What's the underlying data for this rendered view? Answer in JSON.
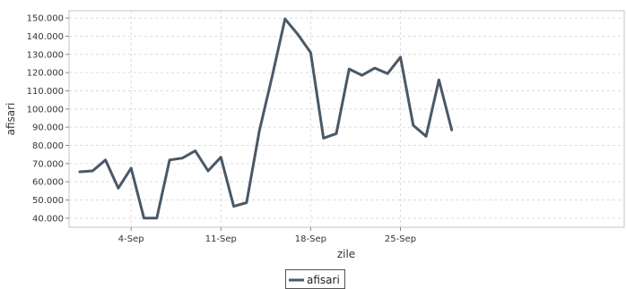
{
  "chart_data": {
    "type": "line",
    "title": "",
    "xlabel": "zile",
    "ylabel": "afisari",
    "grid": true,
    "legend_position": "bottom-center",
    "ylim": [
      35000,
      154000
    ],
    "y_ticks": [
      40000,
      50000,
      60000,
      70000,
      80000,
      90000,
      100000,
      110000,
      120000,
      130000,
      140000,
      150000
    ],
    "y_tick_labels": [
      "40.000",
      "50.000",
      "60.000",
      "70.000",
      "80.000",
      "90.000",
      "100.000",
      "110.000",
      "120.000",
      "130.000",
      "140.000",
      "150.000"
    ],
    "x_dates": [
      "Aug 31",
      "Sep 1",
      "Sep 2",
      "Sep 3",
      "Sep 4",
      "Sep 5",
      "Sep 6",
      "Sep 7",
      "Sep 8",
      "Sep 9",
      "Sep 10",
      "Sep 11",
      "Sep 12",
      "Sep 13",
      "Sep 14",
      "Sep 15",
      "Sep 16",
      "Sep 17",
      "Sep 18",
      "Sep 19",
      "Sep 20",
      "Sep 21",
      "Sep 22",
      "Sep 23",
      "Sep 24",
      "Sep 25",
      "Sep 26",
      "Sep 27",
      "Sep 28",
      "Sep 29"
    ],
    "x_ticks": [
      {
        "date": "Sep 4",
        "label": "4-Sep"
      },
      {
        "date": "Sep 11",
        "label": "11-Sep"
      },
      {
        "date": "Sep 18",
        "label": "18-Sep"
      },
      {
        "date": "Sep 25",
        "label": "25-Sep"
      }
    ],
    "series": [
      {
        "name": "afisari",
        "color": "#4a5868",
        "values": [
          65500,
          66000,
          72000,
          56500,
          67500,
          40000,
          40000,
          72000,
          73000,
          77000,
          66000,
          73500,
          46500,
          48500,
          88000,
          118000,
          149500,
          141000,
          131000,
          84000,
          86500,
          122000,
          118500,
          122500,
          119500,
          128500,
          91000,
          85000,
          116000,
          88500
        ]
      }
    ]
  }
}
